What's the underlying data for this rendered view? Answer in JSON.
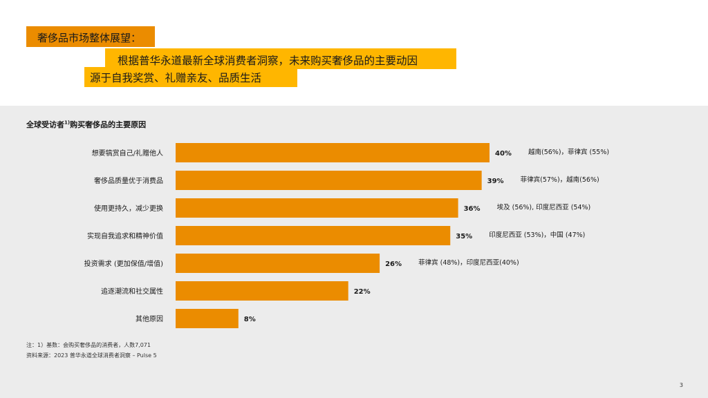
{
  "slide": {
    "tag": "奢侈品市场整体展望：",
    "headline_line1": "根据普华永道最新全球消费者洞察，未来购买奢侈品的主要动因",
    "headline_line2": "源于自我奖赏、礼赠亲友、品质生活",
    "page_number": "3"
  },
  "colors": {
    "bar": "#EB8C00",
    "tag_bg": "#EB8C00",
    "headline_bg": "#FFB600",
    "panel_bg": "#ECECEC"
  },
  "chart_data": {
    "type": "bar",
    "orientation": "horizontal",
    "title": "全球受访者",
    "title_sup": "1)",
    "title_suffix": "购买奢侈品的主要原因",
    "categories": [
      "想要犒赏自己/礼赠他人",
      "奢侈品质量优于消费品",
      "使用更持久，减少更换",
      "实现自我追求和精神价值",
      "投资需求 (更加保值/增值)",
      "追逐潮流和社交属性",
      "其他原因"
    ],
    "values": [
      40,
      39,
      36,
      35,
      26,
      22,
      8
    ],
    "value_labels": [
      "40%",
      "39%",
      "36%",
      "35%",
      "26%",
      "22%",
      "8%"
    ],
    "annotations": [
      "越南(56%)，菲律宾 (55%)",
      "菲律宾(57%)，越南(56%)",
      "埃及 (56%), 印度尼西亚 (54%)",
      "印度尼西亚 (53%)，中国 (47%)",
      "菲律宾 (48%)，印度尼西亚(40%)",
      "",
      ""
    ],
    "xlim": [
      0,
      40
    ],
    "grid": false,
    "legend": "none"
  },
  "footnotes": {
    "note": "注：1）基数：会购买奢侈品的消费者，人数7,071",
    "source": "资料来源：2023 普华永道全球消费者洞察 – Pulse 5"
  }
}
